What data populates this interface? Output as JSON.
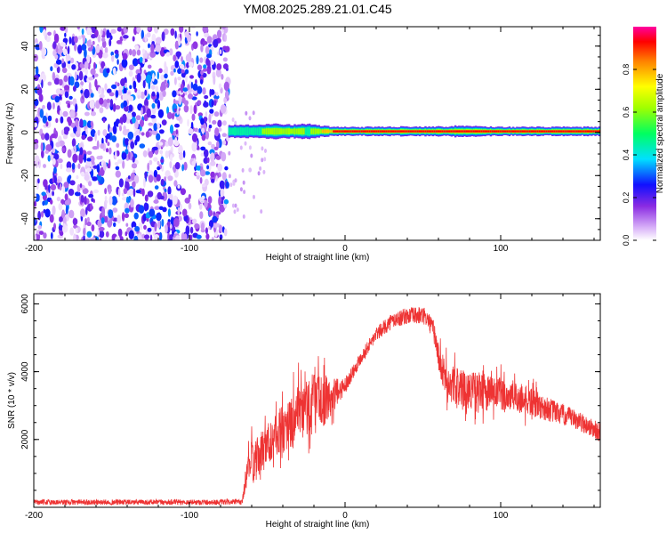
{
  "title": "YM08.2025.289.21.01.C45",
  "chart_data": [
    {
      "type": "heatmap",
      "xlabel": "Height of straight line (km)",
      "ylabel": "Frequency (Hz)",
      "xlim": [
        -200,
        164
      ],
      "ylim": [
        -50,
        49
      ],
      "xticks": [
        -200,
        -100,
        0,
        100
      ],
      "yticks": [
        -40,
        -20,
        0,
        20,
        40
      ],
      "noise_region_km": [
        -200,
        -75
      ],
      "signal_ridge": {
        "frequency_hz": 0.5,
        "x": [
          -75,
          -60,
          -45,
          -35,
          -25,
          -20,
          -15,
          -8,
          0,
          20,
          40,
          55,
          65,
          70,
          80,
          90,
          100,
          130,
          164
        ],
        "halfwidth_hz": [
          3,
          3,
          3.5,
          3,
          3.5,
          3,
          2.5,
          2,
          2,
          2,
          2.2,
          2.2,
          2.2,
          2.5,
          2.5,
          2.2,
          2,
          2,
          2
        ],
        "peak_amplitude": [
          0.45,
          0.55,
          0.6,
          0.7,
          0.55,
          0.6,
          0.75,
          0.85,
          0.9,
          0.9,
          0.92,
          0.9,
          0.88,
          0.85,
          0.9,
          0.92,
          0.92,
          0.92,
          0.9
        ]
      },
      "colorbar": {
        "label": "Normalized spectral amplitude",
        "range": [
          0,
          1
        ],
        "ticks": [
          "0.0",
          "0.2",
          "0.4",
          "0.6",
          "0.8"
        ]
      }
    },
    {
      "type": "line",
      "xlabel": "Height of straight line (km)",
      "ylabel": "SNR (10 * v/v)",
      "xlim": [
        -200,
        164
      ],
      "ylim": [
        0,
        6300
      ],
      "xticks": [
        -200,
        -100,
        0,
        100
      ],
      "yticks": [
        2000,
        4000,
        6000
      ],
      "series": [
        {
          "name": "SNR",
          "color": "#ee3333",
          "x": [
            -200,
            -150,
            -100,
            -80,
            -66,
            -62,
            -58,
            -50,
            -40,
            -30,
            -20,
            -10,
            -5,
            0,
            10,
            20,
            30,
            40,
            50,
            53,
            57,
            62,
            66,
            75,
            90,
            110,
            130,
            150,
            164
          ],
          "baseline": [
            150,
            150,
            150,
            150,
            160,
            1400,
            1300,
            1900,
            2300,
            2700,
            3100,
            3200,
            3400,
            3600,
            4400,
            5100,
            5500,
            5650,
            5650,
            5550,
            5200,
            4000,
            3700,
            3500,
            3400,
            3250,
            2900,
            2550,
            2200
          ],
          "noise_amp": [
            100,
            100,
            100,
            100,
            100,
            700,
            800,
            800,
            900,
            1100,
            1200,
            800,
            500,
            300,
            250,
            250,
            300,
            300,
            350,
            300,
            400,
            600,
            700,
            700,
            700,
            600,
            450,
            350,
            350
          ]
        }
      ]
    }
  ]
}
